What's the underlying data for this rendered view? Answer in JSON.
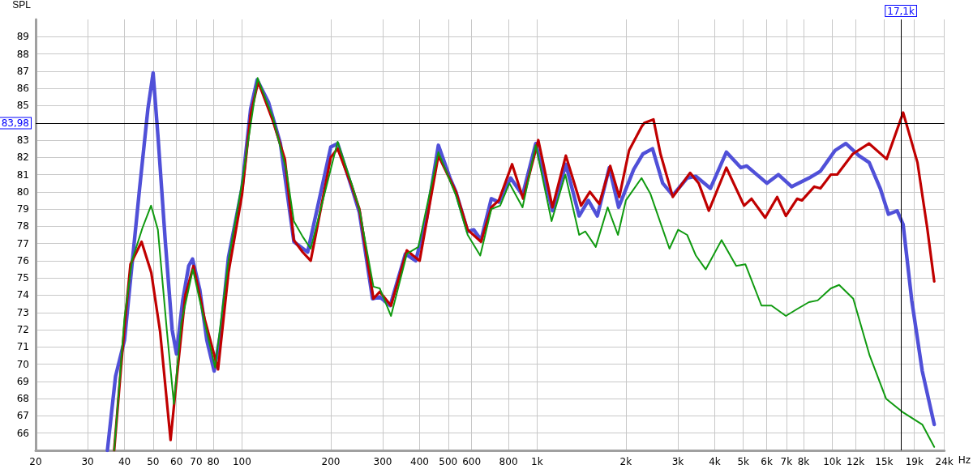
{
  "chart_data": {
    "type": "line",
    "ylabel": "SPL",
    "log": "x",
    "xlim": [
      20,
      24000
    ],
    "ylim": [
      65,
      90
    ],
    "xticks": [
      20,
      30,
      40,
      50,
      60,
      70,
      80,
      100,
      200,
      300,
      400,
      500,
      600,
      800,
      {
        "value": 1000,
        "label": "1k"
      },
      {
        "value": 2000,
        "label": "2k"
      },
      {
        "value": 3000,
        "label": "3k"
      },
      {
        "value": 4000,
        "label": "4k"
      },
      {
        "value": 5000,
        "label": "5k"
      },
      {
        "value": 6000,
        "label": "6k"
      },
      {
        "value": 7000,
        "label": "7k"
      },
      {
        "value": 8000,
        "label": "8k"
      },
      {
        "value": 10000,
        "label": "10k"
      },
      {
        "value": 12000,
        "label": "12k"
      },
      {
        "value": 15000,
        "label": "15k"
      },
      {
        "value": 19000,
        "label": "19k"
      },
      {
        "value": 24000,
        "label": "24k"
      }
    ],
    "xlabel": "Hz",
    "yticks": [
      66,
      67,
      68,
      69,
      70,
      71,
      72,
      73,
      74,
      75,
      76,
      77,
      78,
      79,
      80,
      81,
      82,
      83,
      85,
      86,
      87,
      88,
      89
    ],
    "grid": true,
    "marker": "none",
    "line_style": "solid",
    "ref_lines": [
      {
        "axis": "x",
        "value": 17100,
        "label": "17,1k",
        "color": "#000000"
      },
      {
        "axis": "y",
        "value": 83.98,
        "label": "83,98",
        "color": "#000000"
      }
    ],
    "series": [
      {
        "color": "#5050d8",
        "x": [
          35,
          37.3,
          40,
          45,
          48,
          50,
          52,
          55,
          58,
          60,
          63,
          66,
          68,
          72,
          76,
          80.5,
          85,
          90,
          100,
          107,
          112.6,
          123,
          135,
          150,
          167,
          200,
          211,
          236,
          250,
          277,
          293,
          318,
          358,
          388,
          422,
          463,
          507,
          531,
          582,
          610,
          646,
          700,
          742,
          814,
          893,
          990,
          1128,
          1252,
          1389,
          1492,
          1601,
          1757,
          1890,
          2126,
          2285,
          2462,
          2665,
          2884,
          3226,
          3454,
          3867,
          4380,
          4905,
          5134,
          6009,
          6577,
          7287,
          8345,
          9127,
          10230,
          11125,
          12320,
          13350,
          14550,
          15520,
          16600,
          17400,
          18610,
          20200,
          22180
        ],
        "values": [
          65,
          69.3,
          71.4,
          80.2,
          84.8,
          86.9,
          83.1,
          77.1,
          72,
          70.6,
          73.7,
          75.7,
          76.1,
          74.3,
          71.4,
          69.6,
          72,
          76.2,
          80.2,
          84.8,
          86.5,
          85.2,
          82.8,
          77.1,
          76.5,
          82.6,
          82.8,
          80.2,
          78.8,
          73.8,
          73.9,
          73.4,
          76.4,
          76,
          78.4,
          82.7,
          80.8,
          80,
          77.7,
          77.8,
          77.2,
          79.6,
          79.4,
          80.8,
          79.8,
          82.8,
          78.9,
          81.6,
          78.6,
          79.5,
          78.6,
          81.4,
          79.1,
          81.3,
          82.2,
          82.5,
          80.5,
          79.8,
          80.8,
          80.9,
          80.2,
          82.3,
          81.4,
          81.5,
          80.5,
          81,
          80.3,
          80.8,
          81.2,
          82.4,
          82.8,
          82.1,
          81.7,
          80.2,
          78.7,
          78.9,
          78.1,
          73.7,
          69.6,
          66.5
        ]
      },
      {
        "color": "#c00000",
        "x": [
          36.9,
          38.7,
          40,
          41.9,
          45.7,
          49.3,
          52.8,
          57.3,
          60.2,
          64.3,
          68.5,
          74.8,
          83,
          90,
          100,
          107.1,
          113.5,
          127.4,
          139.8,
          149.9,
          160.6,
          171,
          200,
          211,
          236,
          250,
          279,
          293,
          320,
          362,
          400,
          463,
          531,
          582,
          646,
          700,
          742,
          823,
          897,
          1010,
          1128,
          1252,
          1410,
          1510,
          1625,
          1770,
          1900,
          2050,
          2264,
          2310,
          2480,
          2620,
          2884,
          3300,
          3530,
          3820,
          4380,
          5030,
          5330,
          5930,
          6510,
          6970,
          7610,
          7900,
          8700,
          9127,
          9900,
          10400,
          11750,
          13340,
          15300,
          17400,
          19460,
          21000,
          22180
        ],
        "values": [
          65,
          69.3,
          72.2,
          75.8,
          77.1,
          75.3,
          71.9,
          65.6,
          69.3,
          74,
          75.7,
          72.6,
          69.7,
          75.3,
          79.8,
          84.5,
          86.4,
          84.1,
          81.9,
          77.2,
          76.5,
          76,
          82,
          82.5,
          80.3,
          79,
          73.8,
          74.2,
          73.4,
          76.6,
          76,
          82.1,
          80,
          77.8,
          77.1,
          79.1,
          79.5,
          81.6,
          79.6,
          83,
          79.1,
          82.1,
          79.2,
          80,
          79.3,
          81.5,
          79.7,
          82.4,
          83.8,
          84,
          84.2,
          82.2,
          79.7,
          81.1,
          80.5,
          78.9,
          81.4,
          79.2,
          79.6,
          78.5,
          79.7,
          78.6,
          79.6,
          79.5,
          80.3,
          80.2,
          81,
          81,
          82.2,
          82.8,
          81.9,
          84.6,
          81.7,
          77.9,
          74.8
        ]
      },
      {
        "color": "#109a10",
        "x": [
          36.9,
          40,
          42.4,
          46,
          49.2,
          51.9,
          55.7,
          58.8,
          62.3,
          68.2,
          74.8,
          81.1,
          90,
          100,
          113,
          127.4,
          141.6,
          149.9,
          160.6,
          171,
          211,
          236,
          250,
          279,
          293,
          320,
          362,
          396,
          463,
          531,
          582,
          642,
          700,
          750,
          806,
          893,
          990,
          1120,
          1247,
          1389,
          1458,
          1581,
          1735,
          1880,
          2000,
          2260,
          2420,
          2810,
          3006,
          3226,
          3454,
          3730,
          4220,
          4730,
          5080,
          5760,
          6230,
          6970,
          7610,
          8345,
          8930,
          9900,
          10560,
          11790,
          13400,
          15230,
          17400,
          20200,
          22180
        ],
        "values": [
          65,
          72.7,
          76,
          77.9,
          79.2,
          77.8,
          71.9,
          67.7,
          72.4,
          75.5,
          72.4,
          69.8,
          76,
          80.5,
          86.6,
          84.3,
          81.2,
          78.3,
          77.4,
          76.7,
          82.9,
          80.4,
          79,
          74.5,
          74.4,
          72.8,
          76.4,
          76.8,
          82.3,
          79.8,
          77.5,
          76.3,
          79,
          79.2,
          80.5,
          79.1,
          82.7,
          78.3,
          81,
          77.5,
          77.7,
          76.8,
          79.1,
          77.5,
          79.5,
          80.8,
          79.9,
          76.7,
          77.8,
          77.5,
          76.3,
          75.5,
          77.2,
          75.7,
          75.8,
          73.4,
          73.4,
          72.8,
          73.2,
          73.6,
          73.7,
          74.4,
          74.6,
          73.8,
          70.5,
          68,
          67.2,
          66.5,
          65.2
        ]
      }
    ]
  }
}
